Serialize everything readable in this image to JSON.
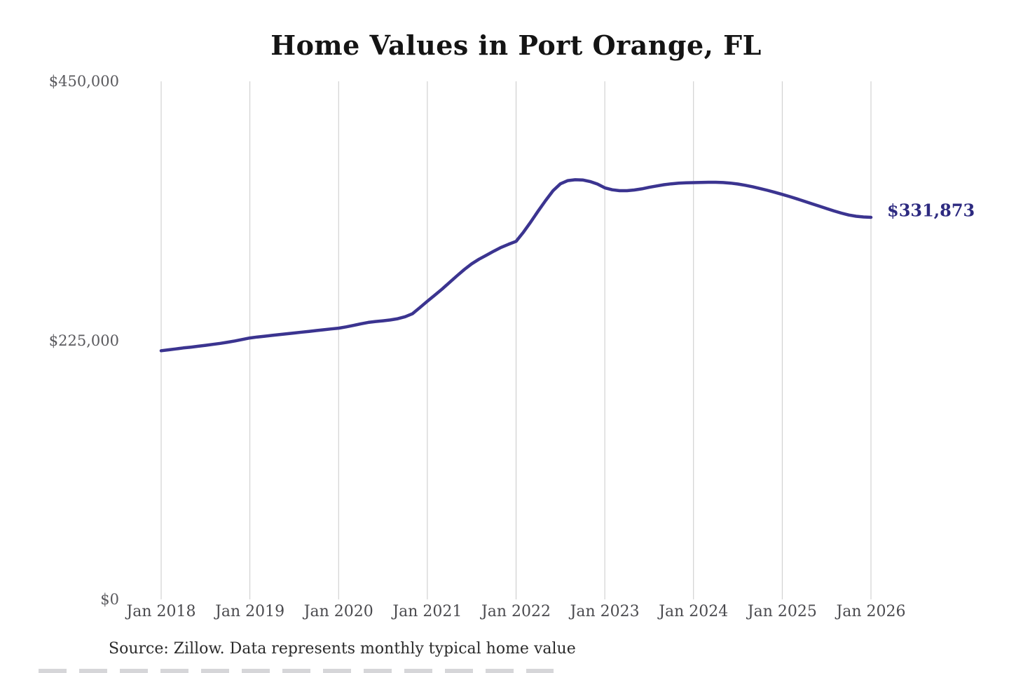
{
  "source_note": "Source: Zillow. Data represents monthly typical home value",
  "colors": {
    "line": "#3b3490",
    "end_label": "#2d2a80",
    "grid": "#c9c9c9",
    "title": "#141414",
    "y_tick": "#5a5a5e",
    "x_tick": "#4b4b4f",
    "source": "#2b2b2b"
  },
  "chart_data": {
    "type": "line",
    "title": "Home Values in Port Orange, FL",
    "xlabel": "",
    "ylabel": "",
    "ylim": [
      0,
      450000
    ],
    "grid": "vertical-only",
    "legend": "none",
    "x_frequency": "monthly",
    "x_range": [
      "Jan 2018",
      "Jan 2026"
    ],
    "x_tick_labels": [
      "Jan 2018",
      "Jan 2019",
      "Jan 2020",
      "Jan 2021",
      "Jan 2022",
      "Jan 2023",
      "Jan 2024",
      "Jan 2025",
      "Jan 2026"
    ],
    "y_ticks": [
      {
        "value": 0,
        "label": "$0"
      },
      {
        "value": 225000,
        "label": "$225,000"
      },
      {
        "value": 450000,
        "label": "$450,000"
      }
    ],
    "last_value": 331873,
    "last_value_label": "$331,873",
    "series": [
      {
        "name": "Monthly typical home value",
        "values": [
          216000,
          216800,
          217600,
          218400,
          219100,
          219900,
          220700,
          221500,
          222400,
          223400,
          224500,
          225800,
          227100,
          227900,
          228600,
          229300,
          230000,
          230700,
          231400,
          232100,
          232800,
          233500,
          234200,
          234900,
          235600,
          236700,
          238000,
          239400,
          240600,
          241400,
          242000,
          242700,
          243800,
          245500,
          248200,
          253500,
          259000,
          264200,
          269600,
          275300,
          281000,
          286500,
          291500,
          295500,
          299000,
          302500,
          305800,
          308500,
          311000,
          319000,
          328000,
          337500,
          346500,
          355000,
          361000,
          363800,
          364500,
          364300,
          363000,
          360800,
          357500,
          355800,
          355000,
          355000,
          355600,
          356600,
          357900,
          359100,
          360200,
          361000,
          361500,
          361800,
          362000,
          362200,
          362300,
          362300,
          362100,
          361600,
          360800,
          359700,
          358400,
          356900,
          355300,
          353600,
          351800,
          349900,
          347900,
          345800,
          343700,
          341600,
          339500,
          337400,
          335500,
          333900,
          332800,
          332200,
          331873
        ]
      }
    ]
  }
}
